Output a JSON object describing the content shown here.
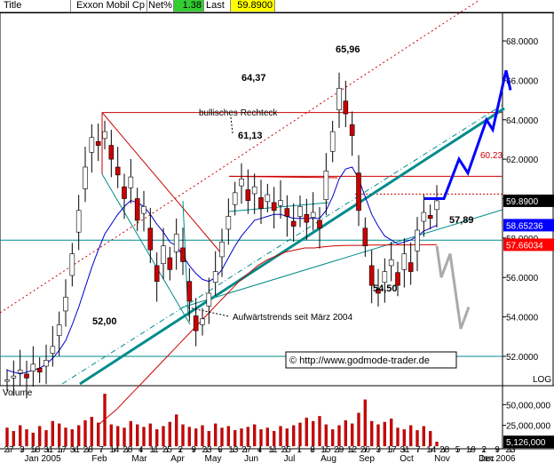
{
  "header": {
    "title_label": "Title",
    "security_name": "Exxon Mobil Cp",
    "netpct_label": "Net%",
    "netpct_value": "1.38",
    "last_label": "Last",
    "last_value": "59.8900"
  },
  "colors": {
    "price_bars": "#cc0000",
    "primary_trend": "#008b8b",
    "ma_short": "#0000cc",
    "ma_long": "#cc0000",
    "projection_up": "#0000ff",
    "projection_down": "#aaaaaa",
    "net_positive": "#33cc33",
    "last_highlight": "#ffff00",
    "tag_blue": "#0000ff",
    "tag_red": "#ff0000"
  },
  "chart_data": [
    {
      "type": "candlestick",
      "title": "",
      "ylim": [
        50.6,
        69.4
      ],
      "y_ticks": [
        "68.0000",
        "66.0000",
        "64.0000",
        "62.0000",
        "60.0000",
        "58.0000",
        "56.0000",
        "54.0000",
        "52.0000"
      ],
      "scale_label": "LOG",
      "x_day_labels": [
        "27",
        "3",
        "18",
        "31",
        "17",
        "31",
        "28",
        "7",
        "14",
        "28",
        "4",
        "11",
        "25",
        "2",
        "9",
        "23",
        "6",
        "13",
        "27",
        "4",
        "11",
        "25",
        "1",
        "8",
        "15",
        "29",
        "12",
        "26",
        "3",
        "17",
        "31",
        "7",
        "14",
        "28",
        "5",
        "19",
        "2",
        "9",
        "23"
      ],
      "x_month_labels": [
        "Jan 2005",
        "Feb",
        "Mar",
        "Apr",
        "May",
        "Jun",
        "Jul",
        "Aug",
        "Sep",
        "Oct",
        "Nov",
        "Dec",
        "Jan 2006"
      ],
      "price_tags": [
        {
          "value": "59.8900",
          "style": "black"
        },
        {
          "value": "58.65236",
          "style": "blue"
        },
        {
          "value": "57.66034",
          "style": "red"
        }
      ],
      "price_close_series": [
        50.8,
        51.0,
        51.3,
        50.9,
        51.6,
        51.2,
        51.8,
        52.5,
        53.6,
        55.0,
        57.2,
        59.4,
        61.6,
        63.1,
        62.7,
        63.4,
        62.0,
        61.2,
        60.0,
        61.1,
        58.9,
        59.6,
        57.4,
        55.8,
        57.6,
        56.4,
        58.2,
        56.8,
        54.8,
        53.3,
        53.9,
        55.2,
        56.3,
        57.8,
        59.1,
        60.3,
        61.0,
        59.9,
        60.6,
        59.5,
        60.2,
        59.4,
        59.9,
        59.1,
        58.6,
        59.6,
        58.8,
        59.3,
        58.5,
        61.4,
        63.4,
        65.6,
        64.3,
        63.2,
        59.4,
        57.6,
        55.6,
        55.2,
        56.3,
        56.9,
        55.6,
        57.2,
        56.3,
        58.4,
        59.3,
        59.0,
        59.89
      ],
      "ma_short_series": [
        51.3,
        51.2,
        51.1,
        51.2,
        51.3,
        51.4,
        51.6,
        51.9,
        52.3,
        52.8,
        53.6,
        54.5,
        55.5,
        56.5,
        57.4,
        58.2,
        58.7,
        59.2,
        59.6,
        59.9,
        59.8,
        59.6,
        59.2,
        58.7,
        58.3,
        57.8,
        57.6,
        57.1,
        56.6,
        56.2,
        55.9,
        55.8,
        56.0,
        56.4,
        57.0,
        57.6,
        58.1,
        58.5,
        58.9,
        59.0,
        59.1,
        59.2,
        59.2,
        59.1,
        59.0,
        59.0,
        59.0,
        59.0,
        59.0,
        59.4,
        60.1,
        61.0,
        61.5,
        61.6,
        61.0,
        60.1,
        59.2,
        58.6,
        58.1,
        57.9,
        57.7,
        57.8,
        57.9,
        58.1,
        58.35,
        58.5,
        58.65236
      ],
      "ma_long_series": [
        48.5,
        48.9,
        49.3,
        49.8,
        50.3,
        50.8,
        51.3,
        51.8,
        52.3,
        52.8,
        53.3,
        53.8,
        54.3,
        54.8,
        55.3,
        55.8,
        56.2,
        56.6,
        56.9,
        57.1,
        57.3,
        57.4,
        57.5,
        57.5,
        57.55,
        57.6,
        57.62,
        57.63,
        57.63,
        57.64,
        57.64,
        57.65,
        57.65,
        57.65,
        57.66,
        57.66,
        57.66034
      ],
      "support_level": 57.89,
      "resistance_levels": [
        64.37,
        61.13,
        60.23
      ],
      "low_level": 52.0,
      "projection_up": [
        60.0,
        60.0,
        62.0,
        61.3,
        64.0,
        63.5,
        66.5,
        65.5
      ],
      "projection_down": [
        57.6,
        56.0,
        57.2,
        53.4,
        54.5
      ],
      "annotations": [
        "64,37",
        "65,96",
        "61,13",
        "60.23",
        "bullisches Rechteck",
        "52,00",
        "Aufwärtstrends seit März 2004",
        "57,89",
        "54,50"
      ],
      "watermark": "© http://www.godmode-trader.de"
    },
    {
      "type": "bar",
      "title": "Volume",
      "ylim": [
        0,
        60000000
      ],
      "y_ticks": [
        "50,000,000",
        "25,000,000"
      ],
      "last_value_label": "5,126,000",
      "last_value": 5126000,
      "volume_series": [
        22000000,
        18000000,
        25000000,
        20000000,
        16000000,
        24000000,
        19000000,
        30000000,
        27000000,
        22000000,
        20000000,
        25000000,
        31000000,
        35000000,
        28000000,
        63000000,
        26000000,
        24000000,
        22000000,
        30000000,
        26000000,
        23000000,
        27000000,
        20000000,
        24000000,
        29000000,
        38000000,
        26000000,
        23000000,
        21000000,
        25000000,
        18000000,
        27000000,
        22000000,
        24000000,
        19000000,
        21000000,
        23000000,
        26000000,
        20000000,
        22000000,
        18000000,
        24000000,
        21000000,
        25000000,
        28000000,
        34000000,
        30000000,
        36000000,
        26000000,
        20000000,
        25000000,
        31000000,
        27000000,
        40000000,
        56000000,
        30000000,
        26000000,
        29000000,
        33000000,
        22000000,
        20000000,
        25000000,
        19000000,
        24000000,
        18000000,
        5126000
      ]
    }
  ]
}
